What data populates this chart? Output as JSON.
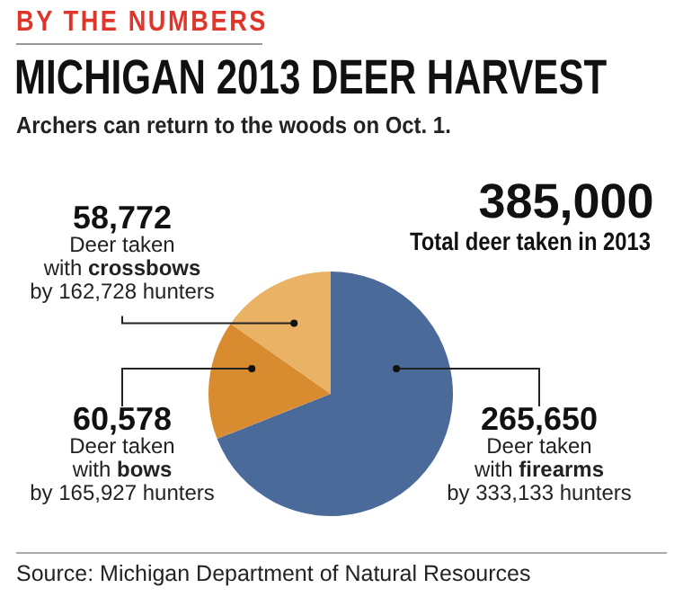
{
  "chart_data": {
    "type": "pie",
    "title": "MICHIGAN 2013 DEER HARVEST",
    "subtitle": "Archers can return to the woods on Oct. 1.",
    "categories": [
      "Deer taken\nwith firearms\nby 333,133 hunters",
      "Deer taken\nwith bows\nby 165,927 hunters",
      "Deer taken\nwith crossbows\nby 162,728 hunters"
    ],
    "values": [
      265650,
      60578,
      58772
    ],
    "colors": [
      "#4a6a9a",
      "#d98b2f",
      "#e9b264"
    ],
    "value_labels": [
      "265,650",
      "60,578",
      "58,772"
    ],
    "annotations": [
      "BY THE NUMBERS",
      "385,000",
      "Total deer taken in 2013",
      "Source: Michigan Department of Natural Resources"
    ]
  }
}
